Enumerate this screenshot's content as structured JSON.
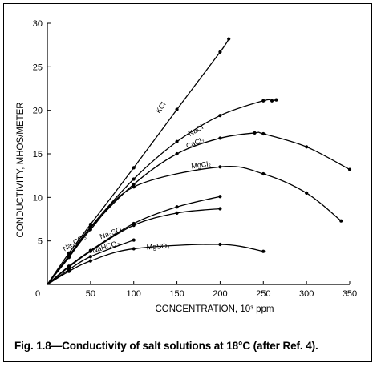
{
  "caption": "Fig. 1.8—Conductivity of salt solutions at 18°C (after Ref. 4).",
  "chart_data": {
    "type": "line",
    "title": "",
    "xlabel": "CONCENTRATION, 10³ ppm",
    "ylabel": "CONDUCTIVITY, MHOS/METER",
    "xlim": [
      0,
      350
    ],
    "ylim": [
      0,
      30
    ],
    "xticks": [
      0,
      50,
      100,
      150,
      200,
      250,
      300,
      350
    ],
    "yticks": [
      0,
      5,
      10,
      15,
      20,
      25,
      30
    ],
    "grid": false,
    "legend": "none",
    "series": [
      {
        "name": "KCl",
        "x": [
          0,
          25,
          50,
          100,
          150,
          200,
          210
        ],
        "y": [
          0,
          3.6,
          6.9,
          13.4,
          20.1,
          26.7,
          28.2
        ]
      },
      {
        "name": "NaCl",
        "x": [
          0,
          25,
          50,
          100,
          150,
          200,
          250,
          260,
          265
        ],
        "y": [
          0,
          3.3,
          6.6,
          12.1,
          16.4,
          19.4,
          21.1,
          21.1,
          21.2
        ]
      },
      {
        "name": "CaCl₂",
        "x": [
          0,
          25,
          50,
          100,
          150,
          200,
          240,
          250,
          300,
          350
        ],
        "y": [
          0,
          3.2,
          6.5,
          11.5,
          15.0,
          16.8,
          17.4,
          17.3,
          15.8,
          13.2
        ]
      },
      {
        "name": "MgCl₂",
        "x": [
          0,
          25,
          50,
          100,
          200,
          250,
          300,
          340
        ],
        "y": [
          0,
          3.1,
          6.3,
          11.2,
          13.5,
          12.7,
          10.5,
          7.3
        ]
      },
      {
        "name": "Na₂CO₃",
        "x": [
          0,
          25,
          50,
          100,
          150,
          200
        ],
        "y": [
          0,
          2.1,
          3.9,
          7.0,
          8.9,
          10.1
        ]
      },
      {
        "name": "Na₂SO₄",
        "x": [
          0,
          25,
          50,
          100,
          150,
          200
        ],
        "y": [
          0,
          2.0,
          3.8,
          6.8,
          8.2,
          8.7
        ]
      },
      {
        "name": "NaHCO₃",
        "x": [
          0,
          25,
          50,
          100
        ],
        "y": [
          0,
          1.7,
          3.2,
          5.1
        ]
      },
      {
        "name": "MgSO₄",
        "x": [
          0,
          25,
          50,
          100,
          200,
          250
        ],
        "y": [
          0,
          1.5,
          2.7,
          4.1,
          4.6,
          3.8
        ]
      }
    ]
  }
}
